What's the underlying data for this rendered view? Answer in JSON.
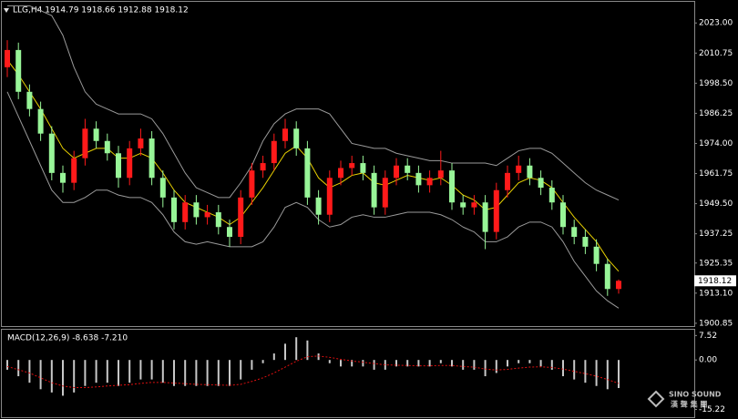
{
  "chart_data": [
    {
      "type": "candlestick",
      "title": "LLG,H4  1914.79 1918.66 1912.88 1918.12",
      "open": [
        2005,
        2012,
        1995,
        1988,
        1978,
        1962,
        1958,
        1968,
        1980,
        1975,
        1970,
        1960,
        1972,
        1976,
        1960,
        1952,
        1942,
        1950,
        1944,
        1946,
        1940,
        1936,
        1952,
        1963,
        1966,
        1975,
        1980,
        1972,
        1952,
        1945,
        1960,
        1964,
        1966,
        1962,
        1948,
        1960,
        1965,
        1962,
        1957,
        1960,
        1963,
        1950,
        1948,
        1950,
        1938,
        1955,
        1962,
        1965,
        1960,
        1956,
        1950,
        1940,
        1936,
        1932,
        1925,
        1914.79
      ],
      "high": [
        2016,
        2015,
        1998,
        1991,
        1981,
        1965,
        1971,
        1984,
        1983,
        1978,
        1973,
        1975,
        1980,
        1979,
        1963,
        1955,
        1953,
        1953,
        1949,
        1949,
        1943,
        1955,
        1966,
        1969,
        1978,
        1984,
        1983,
        1975,
        1955,
        1963,
        1967,
        1969,
        1969,
        1965,
        1963,
        1968,
        1968,
        1965,
        1963,
        1971,
        1966,
        1953,
        1953,
        1953,
        1958,
        1965,
        1969,
        1968,
        1963,
        1959,
        1953,
        1943,
        1939,
        1935,
        1927,
        1918.66
      ],
      "low": [
        2001,
        1992,
        1985,
        1975,
        1959,
        1954,
        1955,
        1965,
        1972,
        1967,
        1956,
        1957,
        1969,
        1957,
        1948,
        1939,
        1939,
        1941,
        1941,
        1937,
        1932,
        1933,
        1949,
        1960,
        1963,
        1972,
        1969,
        1949,
        1941,
        1942,
        1957,
        1961,
        1959,
        1945,
        1945,
        1957,
        1959,
        1954,
        1954,
        1957,
        1947,
        1945,
        1945,
        1931,
        1935,
        1952,
        1959,
        1957,
        1953,
        1947,
        1937,
        1933,
        1929,
        1922,
        1912,
        1912.88
      ],
      "close": [
        2012,
        1995,
        1988,
        1978,
        1962,
        1958,
        1968,
        1980,
        1975,
        1970,
        1960,
        1972,
        1976,
        1960,
        1952,
        1942,
        1950,
        1944,
        1946,
        1940,
        1936,
        1952,
        1963,
        1966,
        1975,
        1980,
        1972,
        1952,
        1945,
        1960,
        1964,
        1966,
        1962,
        1948,
        1960,
        1965,
        1962,
        1957,
        1960,
        1963,
        1950,
        1948,
        1950,
        1938,
        1955,
        1962,
        1965,
        1960,
        1956,
        1950,
        1940,
        1936,
        1932,
        1925,
        1914.79,
        1918.12
      ],
      "up_color": "#ff1a1a",
      "down_color": "#98f598",
      "series": [
        {
          "color": "#e8d000",
          "values": [
            2008,
            2002,
            1995,
            1988,
            1980,
            1972,
            1968,
            1970,
            1972,
            1972,
            1968,
            1968,
            1970,
            1968,
            1962,
            1955,
            1950,
            1948,
            1946,
            1944,
            1941,
            1944,
            1950,
            1956,
            1963,
            1970,
            1973,
            1968,
            1960,
            1956,
            1958,
            1961,
            1962,
            1958,
            1957,
            1959,
            1961,
            1960,
            1959,
            1960,
            1957,
            1953,
            1951,
            1947,
            1948,
            1953,
            1958,
            1960,
            1959,
            1956,
            1950,
            1944,
            1939,
            1934,
            1927,
            1922
          ]
        },
        {
          "color": "#9a9a9a",
          "values": [
            2030,
            2030,
            2030,
            2028,
            2026,
            2018,
            2005,
            1995,
            1990,
            1988,
            1986,
            1986,
            1986,
            1984,
            1978,
            1970,
            1962,
            1956,
            1954,
            1952,
            1952,
            1958,
            1965,
            1975,
            1982,
            1986,
            1988,
            1988,
            1988,
            1986,
            1980,
            1974,
            1973,
            1972,
            1972,
            1970,
            1969,
            1968,
            1967,
            1967,
            1966,
            1966,
            1966,
            1966,
            1965,
            1968,
            1971,
            1972,
            1972,
            1970,
            1966,
            1962,
            1958,
            1955,
            1953,
            1951
          ]
        },
        {
          "color": "#9a9a9a",
          "values": [
            1995,
            1985,
            1975,
            1965,
            1955,
            1950,
            1950,
            1952,
            1955,
            1955,
            1953,
            1952,
            1952,
            1950,
            1945,
            1938,
            1934,
            1933,
            1934,
            1933,
            1932,
            1932,
            1932,
            1934,
            1940,
            1948,
            1950,
            1948,
            1943,
            1940,
            1941,
            1944,
            1945,
            1944,
            1944,
            1945,
            1946,
            1946,
            1946,
            1945,
            1943,
            1940,
            1938,
            1934,
            1934,
            1936,
            1940,
            1942,
            1942,
            1940,
            1934,
            1926,
            1920,
            1914,
            1910,
            1907
          ]
        }
      ],
      "ylim": [
        1899.7,
        2031.6
      ],
      "yticks": [
        {
          "value": 2023,
          "label": "2023.00"
        },
        {
          "value": 2010.75,
          "label": "2010.75"
        },
        {
          "value": 1998.5,
          "label": "1998.50"
        },
        {
          "value": 1986.25,
          "label": "1986.25"
        },
        {
          "value": 1974,
          "label": "1974.00"
        },
        {
          "value": 1961.75,
          "label": "1961.75"
        },
        {
          "value": 1949.5,
          "label": "1949.50"
        },
        {
          "value": 1937.25,
          "label": "1937.25"
        },
        {
          "value": 1925.35,
          "label": "1925.35"
        },
        {
          "value": 1913.1,
          "label": "1913.10"
        },
        {
          "value": 1900.85,
          "label": "1900.85"
        }
      ]
    },
    {
      "type": "macd",
      "title": "MACD(12,26,9) -8.638 -7.210",
      "values": [
        -3,
        -5,
        -7,
        -9,
        -10,
        -11,
        -10,
        -8,
        -7,
        -7,
        -8,
        -7,
        -6,
        -6,
        -7,
        -8,
        -8,
        -8,
        -8,
        -8,
        -8,
        -6,
        -3,
        -1,
        2,
        5,
        7,
        6,
        2,
        -1,
        -2,
        -2,
        -2,
        -3,
        -3,
        -2,
        -2,
        -2,
        -2,
        -1,
        -2,
        -3,
        -3,
        -5,
        -4,
        -2,
        -1,
        -1,
        -2,
        -3,
        -5,
        -6,
        -7,
        -8,
        -9,
        -8.638
      ],
      "color": "#c8c8c8",
      "signal": {
        "color": "#e01010",
        "values": [
          -2,
          -3,
          -4,
          -5.5,
          -7,
          -8,
          -8.5,
          -8.5,
          -8.3,
          -8,
          -7.8,
          -7.6,
          -7.2,
          -6.9,
          -6.9,
          -7.1,
          -7.3,
          -7.5,
          -7.6,
          -7.7,
          -7.8,
          -7.5,
          -6.6,
          -5.5,
          -4,
          -2.2,
          -0.4,
          1,
          1.2,
          0.8,
          0.2,
          -0.3,
          -0.7,
          -1.1,
          -1.5,
          -1.6,
          -1.7,
          -1.8,
          -1.8,
          -1.7,
          -1.7,
          -2,
          -2.2,
          -2.8,
          -3.1,
          -2.9,
          -2.5,
          -2.2,
          -2.1,
          -2.3,
          -2.8,
          -3.5,
          -4.2,
          -5,
          -6,
          -7.21
        ]
      },
      "ylim": [
        -17.6,
        9.3
      ],
      "yticks": [
        7.52,
        {
          "value": 0,
          "label": "0.00"
        },
        -15.22
      ]
    }
  ],
  "watermark": {
    "brand": "SINO SOUND",
    "tagline": "漢 聲 集 團"
  }
}
